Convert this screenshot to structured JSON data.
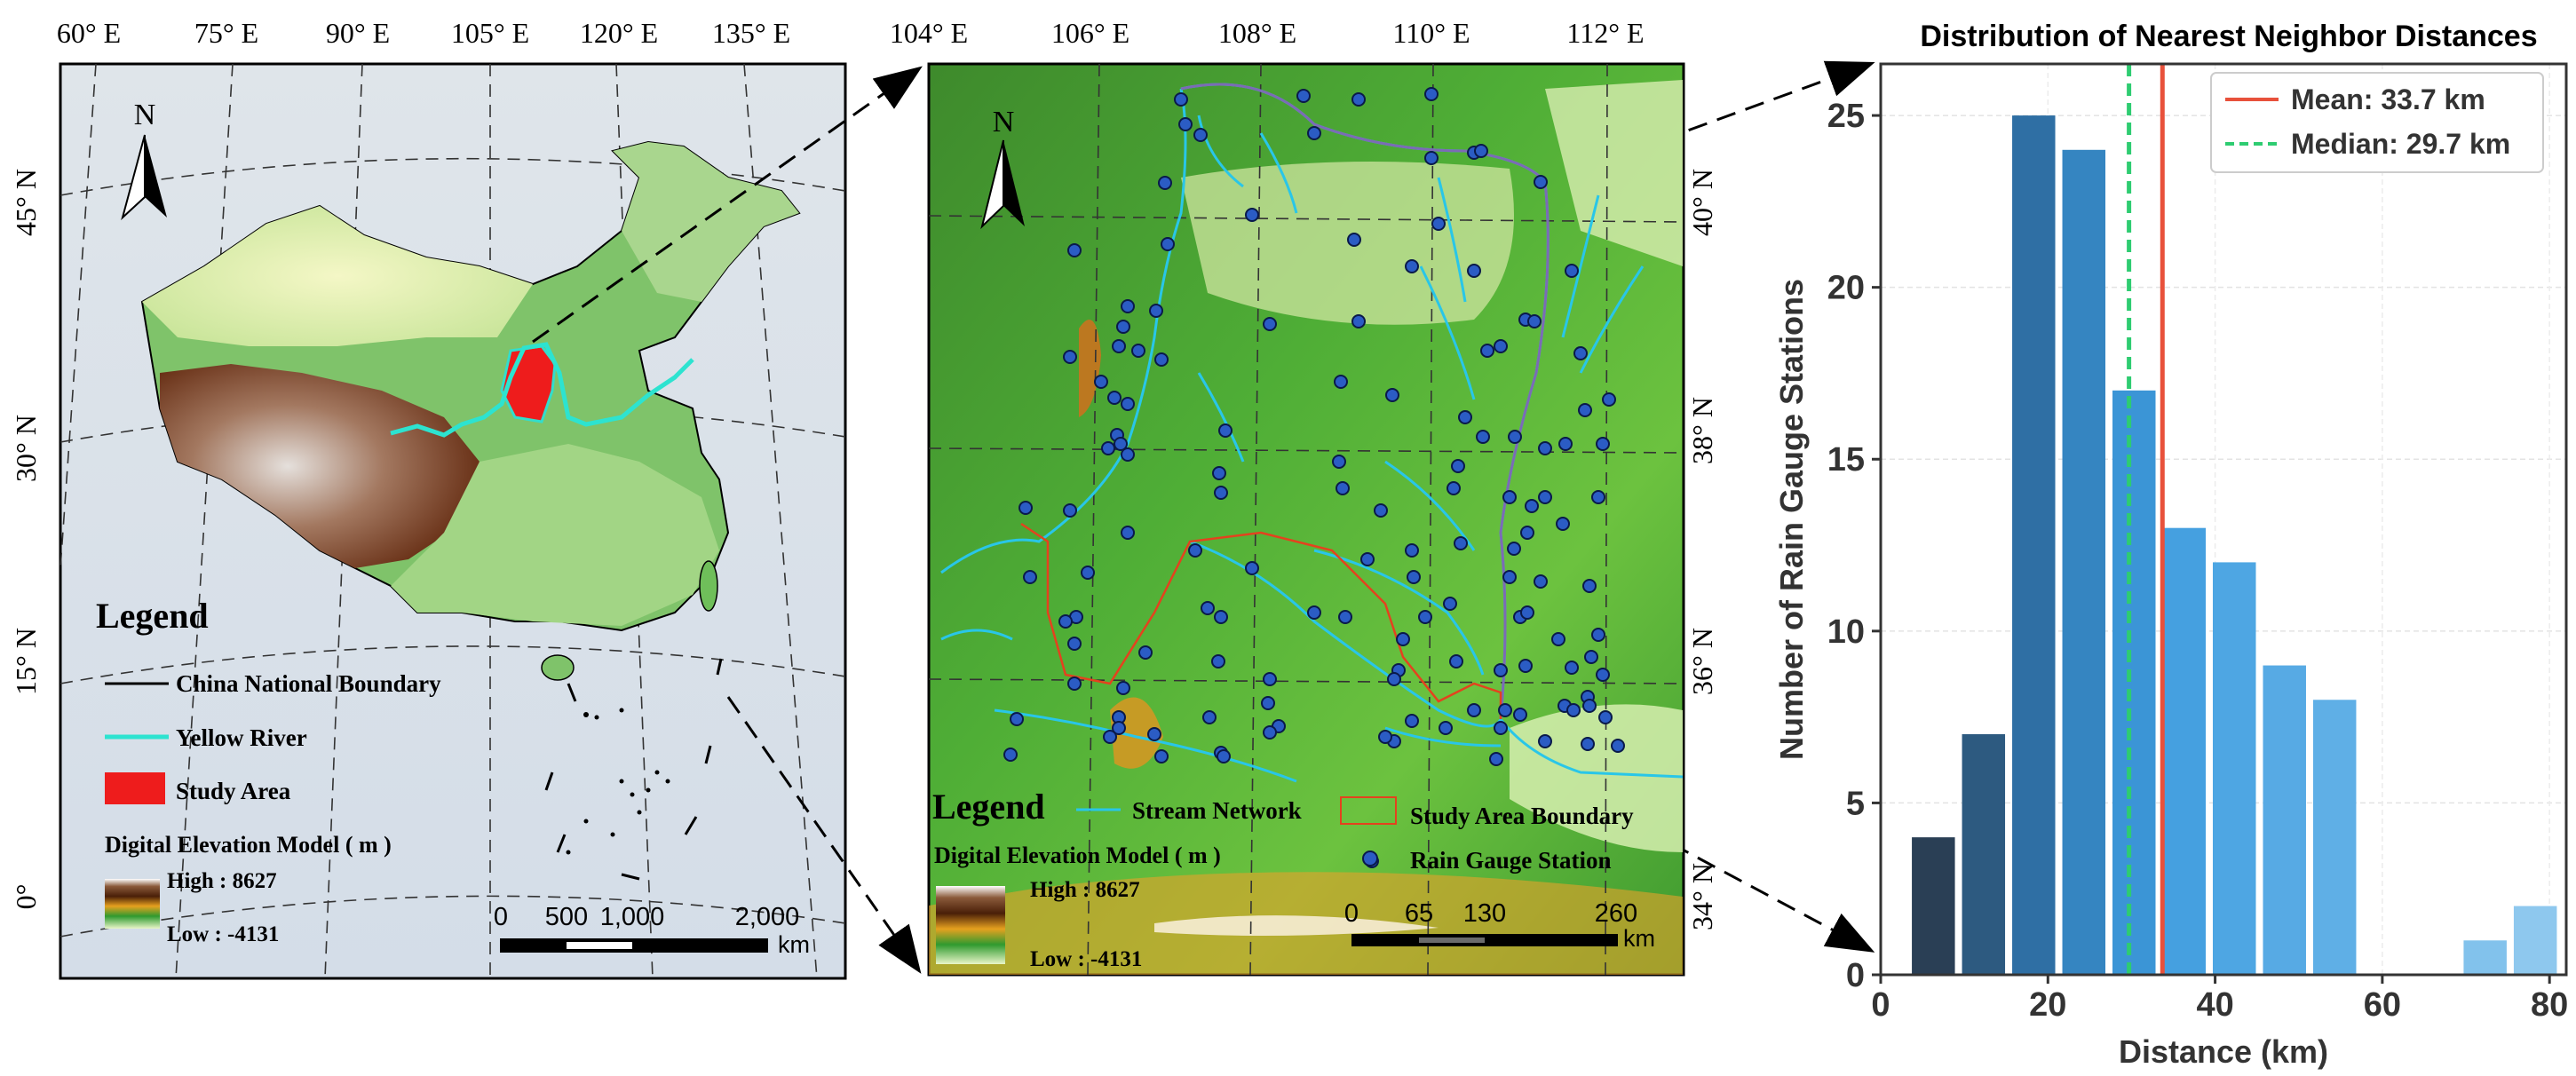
{
  "left_map": {
    "lon_ticks": [
      "60° E",
      "75° E",
      "90° E",
      "105° E",
      "120° E",
      "135° E"
    ],
    "lat_ticks": [
      "45° N",
      "30° N",
      "15° N",
      "0°"
    ],
    "north_label": "N",
    "legend": {
      "title": "Legend",
      "items": [
        {
          "label": "China National Boundary",
          "color": "#000000"
        },
        {
          "label": "Yellow River",
          "color": "#2de3d0"
        },
        {
          "label": "Study Area",
          "color": "#ee1c1c"
        }
      ],
      "dem_title": "Digital Elevation Model ( m )",
      "dem_high": "High : 8627",
      "dem_low": "Low : -4131"
    },
    "scalebar": {
      "labels": [
        "0",
        "500",
        "1,000",
        "2,000"
      ],
      "unit": "km"
    }
  },
  "mid_map": {
    "lon_ticks": [
      "104° E",
      "106° E",
      "108° E",
      "110° E",
      "112° E"
    ],
    "lat_ticks": [
      "40° N",
      "38° N",
      "36° N",
      "34° N"
    ],
    "north_label": "N",
    "legend": {
      "title": "Legend",
      "stream": "Stream Network",
      "boundary": "Study Area Boundary",
      "station": "Rain Gauge Station",
      "dem_title": "Digital Elevation Model ( m )",
      "dem_high": "High : 8627",
      "dem_low": "Low : -4131"
    },
    "scalebar": {
      "labels": [
        "0",
        "65",
        "130",
        "260"
      ],
      "unit": "km"
    }
  },
  "chart_data": {
    "type": "bar",
    "title": "Distribution of Nearest Neighbor Distances",
    "xlabel": "Distance (km)",
    "ylabel": "Number of Rain Gauge Stations",
    "xlim": [
      0,
      82
    ],
    "ylim": [
      0,
      26.5
    ],
    "xticks": [
      0,
      20,
      40,
      60,
      80
    ],
    "yticks": [
      0,
      5,
      10,
      15,
      20,
      25
    ],
    "bin_width": 6.0,
    "bins": [
      {
        "x": 6.3,
        "count": 4,
        "color": "#2a3f55"
      },
      {
        "x": 12.3,
        "count": 7,
        "color": "#2d5a80"
      },
      {
        "x": 18.3,
        "count": 25,
        "color": "#2f6fa4"
      },
      {
        "x": 24.3,
        "count": 24,
        "color": "#3585c1"
      },
      {
        "x": 30.3,
        "count": 17,
        "color": "#3b95d6"
      },
      {
        "x": 36.3,
        "count": 13,
        "color": "#45a0e0"
      },
      {
        "x": 42.3,
        "count": 12,
        "color": "#4ea6e3"
      },
      {
        "x": 48.3,
        "count": 9,
        "color": "#57aae4"
      },
      {
        "x": 54.3,
        "count": 8,
        "color": "#5fafe6"
      },
      {
        "x": 60.3,
        "count": 0,
        "color": "#6ab4e8"
      },
      {
        "x": 66.3,
        "count": 0,
        "color": "#76bbea"
      },
      {
        "x": 72.3,
        "count": 1,
        "color": "#82c2ec"
      },
      {
        "x": 78.3,
        "count": 2,
        "color": "#8ec8ee"
      }
    ],
    "mean": {
      "value": 33.7,
      "label": "Mean: 33.7 km",
      "color": "#e8513b"
    },
    "median": {
      "value": 29.7,
      "label": "Median: 29.7 km",
      "color": "#2ecc71"
    },
    "grid": true,
    "legend_position": "top-right"
  }
}
